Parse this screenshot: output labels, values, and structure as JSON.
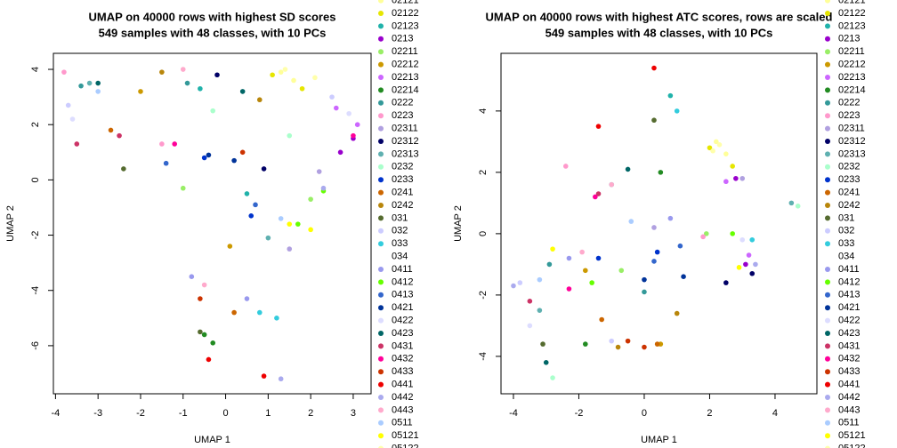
{
  "chart_data": [
    {
      "type": "scatter",
      "title": "UMAP on 40000 rows with highest SD scores",
      "subtitle": "549 samples with 48 classes, with 10 PCs",
      "xlabel": "UMAP 1",
      "ylabel": "UMAP 2",
      "xlim": [
        -4.05,
        3.42
      ],
      "ylim": [
        -7.74,
        4.58
      ],
      "xticks": [
        -4,
        -3,
        -2,
        -1,
        0,
        1,
        2,
        3
      ],
      "yticks": [
        -6,
        -4,
        -2,
        0,
        2,
        4
      ],
      "series": [
        {
          "name": "02121",
          "color": "#ffff99",
          "x": [
            1.3,
            1.6
          ],
          "values": [
            3.9,
            3.6
          ]
        },
        {
          "name": "02122",
          "color": "#e6e600",
          "x": [
            1.1,
            1.8
          ],
          "values": [
            3.8,
            3.3
          ]
        },
        {
          "name": "02123",
          "color": "#20b2aa",
          "x": [
            -0.6,
            0.5
          ],
          "values": [
            3.3,
            -0.5
          ]
        },
        {
          "name": "0213",
          "color": "#9900cc",
          "x": [
            3.0,
            2.7
          ],
          "values": [
            1.5,
            1.0
          ]
        },
        {
          "name": "02211",
          "color": "#99ee66",
          "x": [
            -1.0,
            2.0
          ],
          "values": [
            -0.3,
            -0.7
          ]
        },
        {
          "name": "02212",
          "color": "#cc9900",
          "x": [
            -2.0,
            0.1
          ],
          "values": [
            3.2,
            -2.4
          ]
        },
        {
          "name": "02213",
          "color": "#cc66ff",
          "x": [
            2.6,
            3.1
          ],
          "values": [
            2.6,
            2.0
          ]
        },
        {
          "name": "02214",
          "color": "#228b22",
          "x": [
            -0.5,
            -0.3
          ],
          "values": [
            -5.6,
            -5.9
          ]
        },
        {
          "name": "0222",
          "color": "#339999",
          "x": [
            -3.4,
            -0.9
          ],
          "values": [
            3.4,
            3.5
          ]
        },
        {
          "name": "0223",
          "color": "#ff99cc",
          "x": [
            -3.8,
            -1.5
          ],
          "values": [
            3.9,
            1.3
          ]
        },
        {
          "name": "02311",
          "color": "#b0a0e0",
          "x": [
            1.5,
            2.2
          ],
          "values": [
            -2.5,
            0.3
          ]
        },
        {
          "name": "02312",
          "color": "#000066",
          "x": [
            -0.2,
            0.9
          ],
          "values": [
            3.8,
            0.4
          ]
        },
        {
          "name": "02313",
          "color": "#5fb0b0",
          "x": [
            -3.2,
            1.0
          ],
          "values": [
            3.5,
            -2.1
          ]
        },
        {
          "name": "0232",
          "color": "#aaffcc",
          "x": [
            1.5,
            -0.3
          ],
          "values": [
            1.6,
            2.5
          ]
        },
        {
          "name": "0233",
          "color": "#0033cc",
          "x": [
            -0.5,
            0.6
          ],
          "values": [
            0.8,
            -1.3
          ]
        },
        {
          "name": "0241",
          "color": "#cc6600",
          "x": [
            -2.7,
            0.2
          ],
          "values": [
            1.8,
            -4.8
          ]
        },
        {
          "name": "0242",
          "color": "#b8860b",
          "x": [
            -1.5,
            0.8
          ],
          "values": [
            3.9,
            2.9
          ]
        },
        {
          "name": "031",
          "color": "#556b2f",
          "x": [
            -0.6,
            -2.4
          ],
          "values": [
            -5.5,
            0.4
          ]
        },
        {
          "name": "032",
          "color": "#ccccff",
          "x": [
            -3.7,
            2.5
          ],
          "values": [
            2.7,
            3.0
          ]
        },
        {
          "name": "033",
          "color": "#33ccdd",
          "x": [
            0.8,
            1.2
          ],
          "values": [
            -4.8,
            -5.0
          ]
        },
        {
          "name": "034",
          "color": "#ffffff",
          "x": [
            1.0,
            -2.2
          ],
          "values": [
            2.0,
            3.0
          ]
        },
        {
          "name": "0411",
          "color": "#9999ee",
          "x": [
            -0.8,
            0.5
          ],
          "values": [
            -3.5,
            -4.3
          ]
        },
        {
          "name": "0412",
          "color": "#66ff00",
          "x": [
            1.7,
            2.3
          ],
          "values": [
            -1.6,
            -0.4
          ]
        },
        {
          "name": "0413",
          "color": "#3366cc",
          "x": [
            -1.4,
            0.7
          ],
          "values": [
            0.6,
            -0.9
          ]
        },
        {
          "name": "0421",
          "color": "#003399",
          "x": [
            -0.4,
            0.2
          ],
          "values": [
            0.9,
            0.7
          ]
        },
        {
          "name": "0422",
          "color": "#ddddff",
          "x": [
            -3.6,
            2.9
          ],
          "values": [
            2.2,
            2.4
          ]
        },
        {
          "name": "0423",
          "color": "#006666",
          "x": [
            -3.0,
            0.4
          ],
          "values": [
            3.5,
            3.2
          ]
        },
        {
          "name": "0431",
          "color": "#cc3366",
          "x": [
            -3.5,
            -2.5
          ],
          "values": [
            1.3,
            1.6
          ]
        },
        {
          "name": "0432",
          "color": "#ff0099",
          "x": [
            -1.2,
            3.0
          ],
          "values": [
            1.3,
            1.6
          ]
        },
        {
          "name": "0433",
          "color": "#cc3300",
          "x": [
            0.4,
            -0.6
          ],
          "values": [
            1.0,
            -4.3
          ]
        },
        {
          "name": "0441",
          "color": "#ee0000",
          "x": [
            -0.4,
            0.9
          ],
          "values": [
            -6.5,
            -7.1
          ]
        },
        {
          "name": "0442",
          "color": "#aaaaee",
          "x": [
            1.3,
            2.3
          ],
          "values": [
            -7.2,
            -0.3
          ]
        },
        {
          "name": "0443",
          "color": "#ffaacc",
          "x": [
            -1.0,
            -0.5
          ],
          "values": [
            4.0,
            -3.8
          ]
        },
        {
          "name": "0511",
          "color": "#aaccff",
          "x": [
            -3.0,
            1.3
          ],
          "values": [
            3.2,
            -1.4
          ]
        },
        {
          "name": "05121",
          "color": "#ffff00",
          "x": [
            1.5,
            2.0
          ],
          "values": [
            -1.6,
            -1.8
          ]
        },
        {
          "name": "05122",
          "color": "#ffffaa",
          "x": [
            1.4,
            2.1
          ],
          "values": [
            4.0,
            3.7
          ]
        }
      ]
    },
    {
      "type": "scatter",
      "title": "UMAP on 40000 rows with highest ATC scores, rows are scaled",
      "subtitle": "549 samples with 48 classes, with 10 PCs",
      "xlabel": "UMAP 1",
      "ylabel": "UMAP 2",
      "xlim": [
        -4.38,
        5.28
      ],
      "ylim": [
        -5.22,
        5.88
      ],
      "xticks": [
        -4,
        -2,
        0,
        2,
        4
      ],
      "yticks": [
        -4,
        -2,
        0,
        2,
        4
      ],
      "series": [
        {
          "name": "02121",
          "color": "#ffff99",
          "x": [
            2.2,
            2.5
          ],
          "values": [
            3.0,
            2.6
          ]
        },
        {
          "name": "02122",
          "color": "#e6e600",
          "x": [
            2.0,
            2.7
          ],
          "values": [
            2.8,
            2.2
          ]
        },
        {
          "name": "02123",
          "color": "#20b2aa",
          "x": [
            0.8,
            -1.0
          ],
          "values": [
            4.5,
            1.6
          ]
        },
        {
          "name": "0213",
          "color": "#9900cc",
          "x": [
            2.8,
            3.1
          ],
          "values": [
            1.8,
            -1.0
          ]
        },
        {
          "name": "02211",
          "color": "#99ee66",
          "x": [
            1.9,
            -0.7
          ],
          "values": [
            0.0,
            -1.2
          ]
        },
        {
          "name": "02212",
          "color": "#cc9900",
          "x": [
            -1.8,
            0.5
          ],
          "values": [
            -1.2,
            -3.6
          ]
        },
        {
          "name": "02213",
          "color": "#cc66ff",
          "x": [
            2.5,
            3.2
          ],
          "values": [
            1.7,
            -0.7
          ]
        },
        {
          "name": "02214",
          "color": "#228b22",
          "x": [
            -1.8,
            0.5
          ],
          "values": [
            -3.6,
            2.0
          ]
        },
        {
          "name": "0222",
          "color": "#339999",
          "x": [
            -2.9,
            0.0
          ],
          "values": [
            -1.0,
            -1.9
          ]
        },
        {
          "name": "0223",
          "color": "#ff99cc",
          "x": [
            -2.4,
            1.8
          ],
          "values": [
            2.2,
            -0.1
          ]
        },
        {
          "name": "02311",
          "color": "#b0a0e0",
          "x": [
            0.3,
            3.0
          ],
          "values": [
            0.2,
            1.8
          ]
        },
        {
          "name": "02312",
          "color": "#000066",
          "x": [
            2.5,
            3.3
          ],
          "values": [
            -1.6,
            -1.3
          ]
        },
        {
          "name": "02313",
          "color": "#5fb0b0",
          "x": [
            -3.2,
            4.5
          ],
          "values": [
            -2.5,
            1.0
          ]
        },
        {
          "name": "0232",
          "color": "#aaffcc",
          "x": [
            -2.8,
            4.7
          ],
          "values": [
            -4.7,
            0.9
          ]
        },
        {
          "name": "0233",
          "color": "#0033cc",
          "x": [
            -1.4,
            0.4
          ],
          "values": [
            -0.8,
            -0.6
          ]
        },
        {
          "name": "0241",
          "color": "#cc6600",
          "x": [
            -1.3,
            0.4
          ],
          "values": [
            -2.8,
            -3.6
          ]
        },
        {
          "name": "0242",
          "color": "#b8860b",
          "x": [
            -0.8,
            1.0
          ],
          "values": [
            -3.7,
            -2.6
          ]
        },
        {
          "name": "031",
          "color": "#556b2f",
          "x": [
            -3.1,
            0.3
          ],
          "values": [
            -3.6,
            3.7
          ]
        },
        {
          "name": "032",
          "color": "#ccccff",
          "x": [
            -3.8,
            -1.0
          ],
          "values": [
            -1.6,
            -3.5
          ]
        },
        {
          "name": "033",
          "color": "#33ccdd",
          "x": [
            1.0,
            3.3
          ],
          "values": [
            4.0,
            -0.2
          ]
        },
        {
          "name": "034",
          "color": "#ffffff",
          "x": [
            2.9,
            -0.2
          ],
          "values": [
            -0.5,
            -3.2
          ]
        },
        {
          "name": "0411",
          "color": "#9999ee",
          "x": [
            -2.3,
            0.8
          ],
          "values": [
            -0.8,
            0.5
          ]
        },
        {
          "name": "0412",
          "color": "#66ff00",
          "x": [
            -1.6,
            2.7
          ],
          "values": [
            -1.6,
            0.0
          ]
        },
        {
          "name": "0413",
          "color": "#3366cc",
          "x": [
            0.3,
            1.1
          ],
          "values": [
            -0.9,
            -0.4
          ]
        },
        {
          "name": "0421",
          "color": "#003399",
          "x": [
            0.0,
            1.2
          ],
          "values": [
            -1.5,
            -1.4
          ]
        },
        {
          "name": "0422",
          "color": "#ddddff",
          "x": [
            -3.5,
            3.0
          ],
          "values": [
            -3.0,
            -0.2
          ]
        },
        {
          "name": "0423",
          "color": "#006666",
          "x": [
            -0.5,
            -3.0
          ],
          "values": [
            2.1,
            -4.2
          ]
        },
        {
          "name": "0431",
          "color": "#cc3366",
          "x": [
            -1.4,
            -3.5
          ],
          "values": [
            1.3,
            -2.2
          ]
        },
        {
          "name": "0432",
          "color": "#ff0099",
          "x": [
            -2.3,
            -1.5
          ],
          "values": [
            -1.8,
            1.2
          ]
        },
        {
          "name": "0433",
          "color": "#cc3300",
          "x": [
            -0.5,
            0.0
          ],
          "values": [
            -3.5,
            -3.7
          ]
        },
        {
          "name": "0441",
          "color": "#ee0000",
          "x": [
            -1.4,
            0.3
          ],
          "values": [
            3.5,
            5.4
          ]
        },
        {
          "name": "0442",
          "color": "#aaaaee",
          "x": [
            -4.0,
            3.4
          ],
          "values": [
            -1.7,
            -1.0
          ]
        },
        {
          "name": "0443",
          "color": "#ffaacc",
          "x": [
            -1.0,
            -1.9
          ],
          "values": [
            1.6,
            -0.6
          ]
        },
        {
          "name": "0511",
          "color": "#aaccff",
          "x": [
            -3.2,
            -0.4
          ],
          "values": [
            -1.5,
            0.4
          ]
        },
        {
          "name": "05121",
          "color": "#ffff00",
          "x": [
            2.9,
            -2.8
          ],
          "values": [
            -1.1,
            -0.5
          ]
        },
        {
          "name": "05122",
          "color": "#ffffaa",
          "x": [
            2.3,
            2.1
          ],
          "values": [
            2.9,
            2.7
          ]
        }
      ]
    }
  ]
}
